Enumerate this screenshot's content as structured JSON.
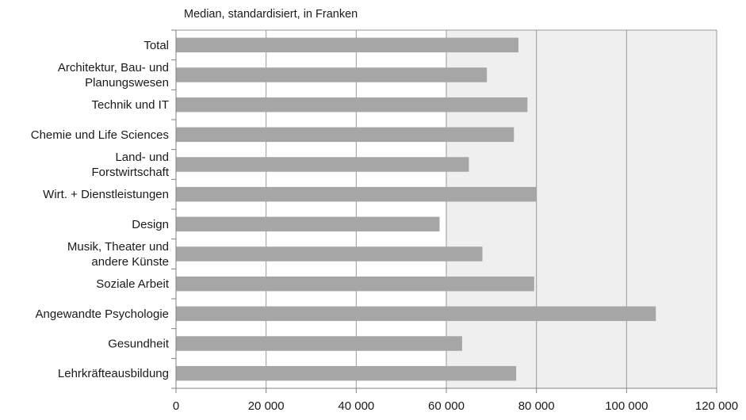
{
  "chart_data": {
    "type": "bar",
    "orientation": "horizontal",
    "subtitle": "Median, standardisiert, in Franken",
    "categories": [
      "Total",
      "Architektur, Bau- und Planungswesen",
      "Technik und IT",
      "Chemie und Life Sciences",
      "Land- und Forstwirtschaft",
      "Wirt. + Dienstleistungen",
      "Design",
      "Musik, Theater und andere Künste",
      "Soziale Arbeit",
      "Angewandte Psychologie",
      "Gesundheit",
      "Lehrkräfteausbildung"
    ],
    "category_label_lines": [
      [
        "Total"
      ],
      [
        "Architektur, Bau- und",
        "Planungswesen"
      ],
      [
        "Technik und IT"
      ],
      [
        "Chemie und Life Sciences"
      ],
      [
        "Land- und",
        "Forstwirtschaft"
      ],
      [
        "Wirt. + Dienstleistungen"
      ],
      [
        "Design"
      ],
      [
        "Musik, Theater und",
        "andere Künste"
      ],
      [
        "Soziale Arbeit"
      ],
      [
        "Angewandte Psychologie"
      ],
      [
        "Gesundheit"
      ],
      [
        "Lehrkräfteausbildung"
      ]
    ],
    "values": [
      76000,
      69000,
      78000,
      75000,
      65000,
      80000,
      58500,
      68000,
      79500,
      106500,
      63500,
      75500
    ],
    "xlim": [
      0,
      120000
    ],
    "xticks": [
      0,
      20000,
      40000,
      60000,
      80000,
      100000,
      120000
    ],
    "xtick_labels": [
      "0",
      "20 000",
      "40 000",
      "60 000",
      "80 000",
      "100 000",
      "120 000"
    ],
    "grid": true,
    "shaded_from": 60000,
    "colors": {
      "bar": "#a6a6a6",
      "grid": "#9a9a9a",
      "shade": "#efefef",
      "axis": "#808080"
    }
  }
}
